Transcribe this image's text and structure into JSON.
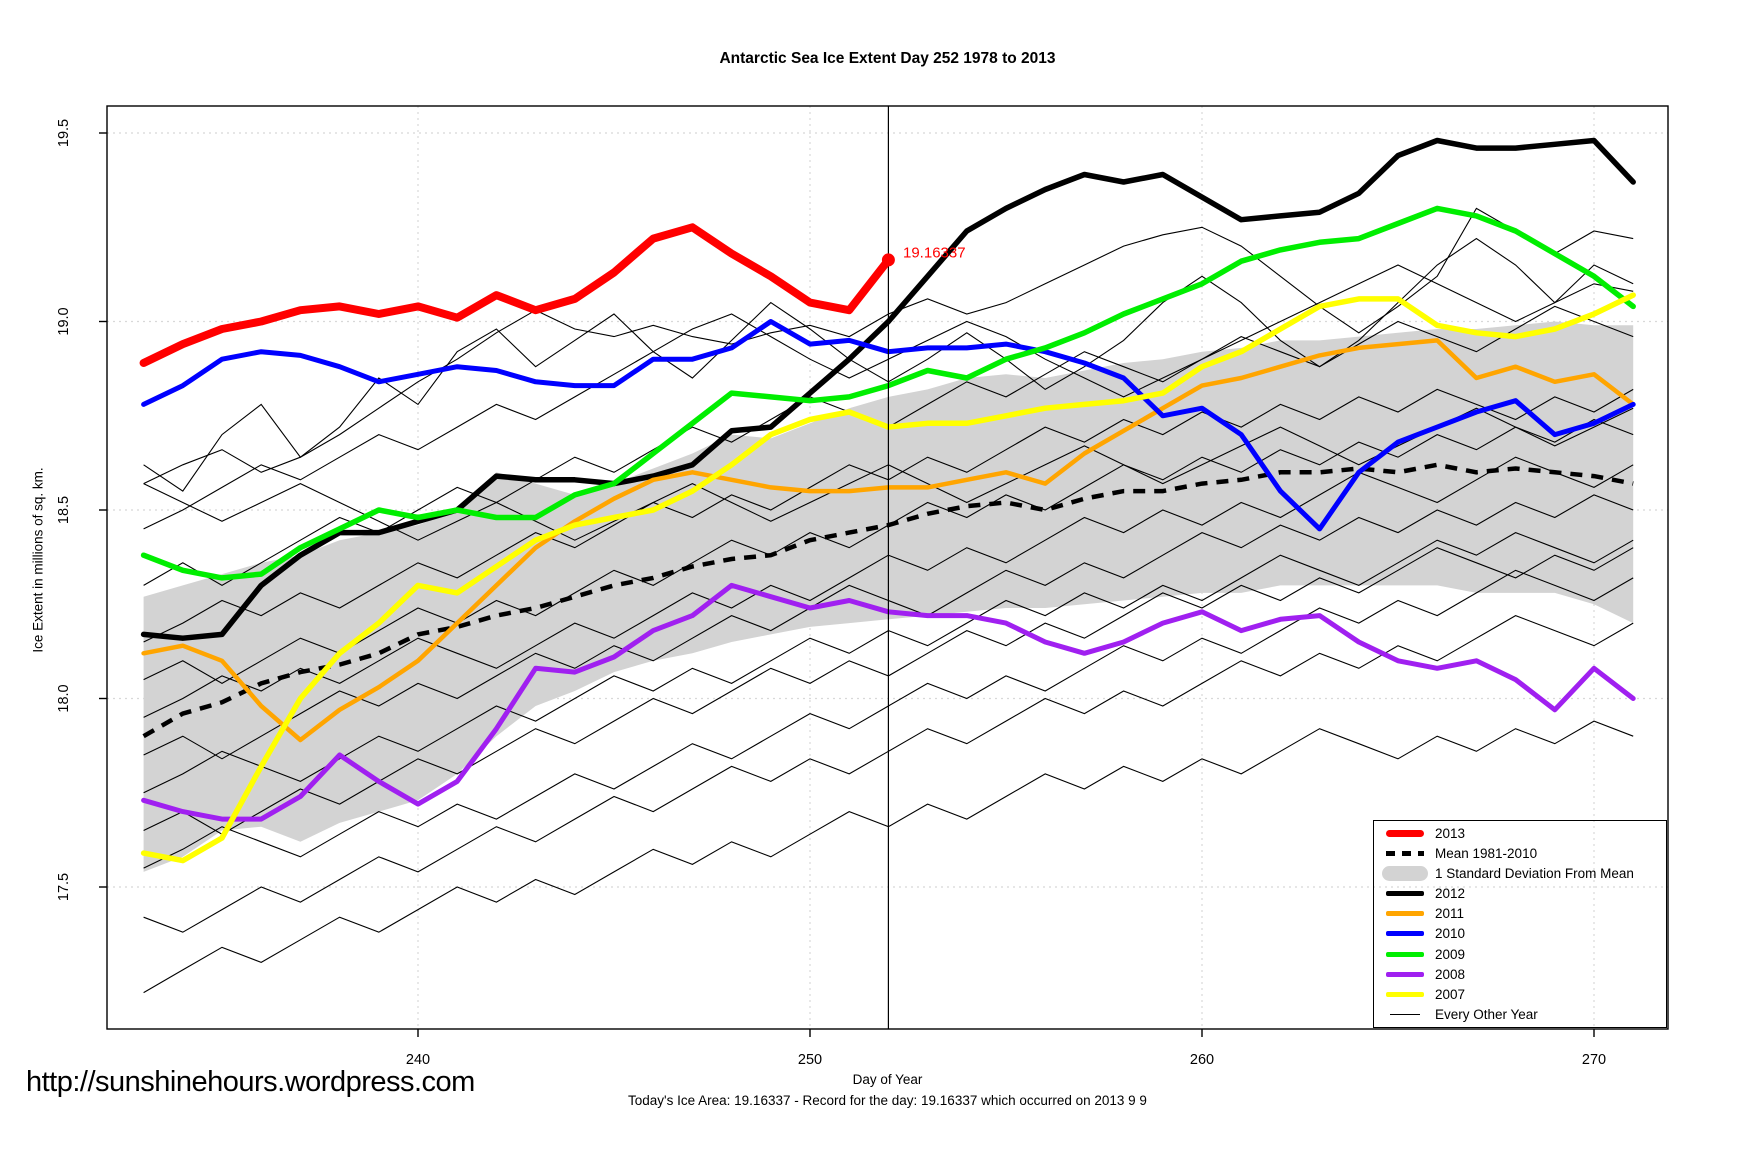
{
  "footer": {
    "url": "http://sunshinehours.wordpress.com",
    "status": "Today's Ice Area: 19.16337  - Record for the day: 19.16337 which occurred on 2013 9 9"
  },
  "chart_data": {
    "type": "line",
    "title": "Antarctic Sea Ice Extent Day 252 1978 to 2013",
    "xlabel": "Day of Year",
    "ylabel": "Ice Extent in millions of sq. km.",
    "x_ticks": [
      240,
      250,
      260,
      270
    ],
    "y_ticks": [
      17.5,
      18.0,
      18.5,
      19.0,
      19.5
    ],
    "x_range": [
      232.1,
      271.9
    ],
    "y_range": [
      17.12,
      19.57
    ],
    "grid": "dashed-lightgray",
    "legend_position": "bottom-right",
    "day_start": 233,
    "vline_day": 252,
    "annotation": {
      "label": "19.16337",
      "day": 252,
      "value": 19.16337,
      "color": "#FF0000"
    },
    "band": {
      "name": "1 Standard Deviation From Mean",
      "color": "#D3D3D3",
      "upper": [
        18.27,
        18.3,
        18.33,
        18.36,
        18.38,
        18.42,
        18.44,
        18.46,
        18.5,
        18.6,
        18.57,
        18.54,
        18.57,
        18.61,
        18.65,
        18.7,
        18.69,
        18.73,
        18.77,
        18.8,
        18.82,
        18.85,
        18.86,
        18.85,
        18.87,
        18.89,
        18.9,
        18.92,
        18.93,
        18.95,
        18.95,
        18.96,
        18.97,
        18.98,
        18.98,
        18.99,
        19.0,
        18.99,
        18.99
      ],
      "lower": [
        17.54,
        17.58,
        17.65,
        17.66,
        17.62,
        17.67,
        17.7,
        17.73,
        17.8,
        17.9,
        17.98,
        18.02,
        18.07,
        18.1,
        18.12,
        18.15,
        18.17,
        18.19,
        18.2,
        18.21,
        18.22,
        18.23,
        18.24,
        18.24,
        18.25,
        18.26,
        18.27,
        18.28,
        18.28,
        18.3,
        18.3,
        18.3,
        18.3,
        18.3,
        18.28,
        18.28,
        18.28,
        18.25,
        18.2
      ]
    },
    "mean": {
      "name": "Mean 1981-2010",
      "color": "#000000",
      "width": 4.5,
      "values": [
        17.9,
        17.96,
        17.99,
        18.04,
        18.07,
        18.09,
        18.12,
        18.17,
        18.19,
        18.22,
        18.24,
        18.27,
        18.3,
        18.32,
        18.35,
        18.37,
        18.38,
        18.42,
        18.44,
        18.46,
        18.49,
        18.51,
        18.52,
        18.5,
        18.53,
        18.55,
        18.55,
        18.57,
        18.58,
        18.6,
        18.6,
        18.61,
        18.6,
        18.62,
        18.6,
        18.61,
        18.6,
        18.59,
        18.57
      ]
    },
    "series": [
      {
        "name": "2012",
        "color": "#000000",
        "width": 5.5,
        "values": [
          18.17,
          18.16,
          18.17,
          18.3,
          18.38,
          18.44,
          18.44,
          18.47,
          18.5,
          18.59,
          18.58,
          18.58,
          18.57,
          18.59,
          18.62,
          18.71,
          18.72,
          18.81,
          18.9,
          19.0,
          19.12,
          19.24,
          19.3,
          19.35,
          19.39,
          19.37,
          19.39,
          19.33,
          19.27,
          19.28,
          19.29,
          19.34,
          19.44,
          19.48,
          19.46,
          19.46,
          19.47,
          19.48,
          19.37
        ]
      },
      {
        "name": "2011",
        "color": "#FFA500",
        "width": 4.5,
        "values": [
          18.12,
          18.14,
          18.1,
          17.98,
          17.89,
          17.97,
          18.03,
          18.1,
          18.2,
          18.3,
          18.4,
          18.47,
          18.53,
          18.58,
          18.6,
          18.58,
          18.56,
          18.55,
          18.55,
          18.56,
          18.56,
          18.58,
          18.6,
          18.57,
          18.65,
          18.71,
          18.77,
          18.83,
          18.85,
          18.88,
          18.91,
          18.93,
          18.94,
          18.95,
          18.85,
          18.88,
          18.84,
          18.86,
          18.78
        ]
      },
      {
        "name": "2010",
        "color": "#0000FF",
        "width": 5,
        "values": [
          18.78,
          18.83,
          18.9,
          18.92,
          18.91,
          18.88,
          18.84,
          18.86,
          18.88,
          18.87,
          18.84,
          18.83,
          18.83,
          18.9,
          18.9,
          18.93,
          19.0,
          18.94,
          18.95,
          18.92,
          18.93,
          18.93,
          18.94,
          18.92,
          18.89,
          18.85,
          18.75,
          18.77,
          18.7,
          18.55,
          18.45,
          18.6,
          18.68,
          18.72,
          18.76,
          18.79,
          18.7,
          18.73,
          18.78
        ]
      },
      {
        "name": "2009",
        "color": "#00EE00",
        "width": 5.5,
        "values": [
          18.38,
          18.34,
          18.32,
          18.33,
          18.4,
          18.45,
          18.5,
          18.48,
          18.5,
          18.48,
          18.48,
          18.54,
          18.57,
          18.65,
          18.73,
          18.81,
          18.8,
          18.79,
          18.8,
          18.83,
          18.87,
          18.85,
          18.9,
          18.93,
          18.97,
          19.02,
          19.06,
          19.1,
          19.16,
          19.19,
          19.21,
          19.22,
          19.26,
          19.3,
          19.28,
          19.24,
          19.18,
          19.12,
          19.04
        ]
      },
      {
        "name": "2008",
        "color": "#A020F0",
        "width": 5,
        "values": [
          17.73,
          17.7,
          17.68,
          17.68,
          17.74,
          17.85,
          17.78,
          17.72,
          17.78,
          17.92,
          18.08,
          18.07,
          18.11,
          18.18,
          18.22,
          18.3,
          18.27,
          18.24,
          18.26,
          18.23,
          18.22,
          18.22,
          18.2,
          18.15,
          18.12,
          18.15,
          18.2,
          18.23,
          18.18,
          18.21,
          18.22,
          18.15,
          18.1,
          18.08,
          18.1,
          18.05,
          17.97,
          18.08,
          18.0
        ]
      },
      {
        "name": "2007",
        "color": "#FFFF00",
        "width": 5.5,
        "values": [
          17.59,
          17.57,
          17.63,
          17.82,
          18.0,
          18.12,
          18.2,
          18.3,
          18.28,
          18.35,
          18.42,
          18.46,
          18.48,
          18.5,
          18.55,
          18.62,
          18.7,
          18.74,
          18.76,
          18.72,
          18.73,
          18.73,
          18.75,
          18.77,
          18.78,
          18.79,
          18.81,
          18.88,
          18.92,
          18.98,
          19.04,
          19.06,
          19.06,
          18.99,
          18.97,
          18.96,
          18.98,
          19.02,
          19.07
        ]
      }
    ],
    "record_series": {
      "name": "2013",
      "color": "#FF0000",
      "width": 8,
      "values": [
        18.89,
        18.94,
        18.98,
        19.0,
        19.03,
        19.04,
        19.02,
        19.04,
        19.01,
        19.07,
        19.03,
        19.06,
        19.13,
        19.22,
        19.25,
        19.18,
        19.12,
        19.05,
        19.03,
        19.163,
        null,
        null,
        null,
        null,
        null,
        null,
        null,
        null,
        null,
        null,
        null,
        null,
        null,
        null,
        null,
        null,
        null,
        null,
        null
      ]
    },
    "thin_series_name": "Every Other Year",
    "thin_series": [
      [
        18.57,
        18.62,
        18.66,
        18.6,
        18.64,
        18.7,
        18.77,
        18.84,
        18.9,
        18.97,
        19.03,
        18.98,
        18.96,
        18.99,
        18.96,
        18.94,
        18.97,
        18.99,
        18.96,
        19.02,
        19.06,
        19.02,
        19.05,
        19.1,
        19.15,
        19.2,
        19.23,
        19.25,
        19.2,
        19.12,
        19.04,
        18.97,
        19.04,
        19.12,
        19.3,
        19.24,
        19.18,
        19.24,
        19.22
      ],
      [
        18.45,
        18.5,
        18.56,
        18.62,
        18.58,
        18.64,
        18.7,
        18.66,
        18.72,
        18.78,
        18.74,
        18.8,
        18.86,
        18.92,
        18.98,
        19.02,
        18.96,
        18.9,
        18.85,
        18.9,
        18.95,
        19.0,
        18.96,
        18.9,
        18.85,
        18.8,
        18.85,
        18.9,
        18.95,
        19.0,
        19.05,
        19.1,
        19.15,
        19.1,
        19.05,
        19.0,
        19.05,
        19.1,
        19.08
      ],
      [
        18.3,
        18.36,
        18.3,
        18.36,
        18.42,
        18.48,
        18.44,
        18.5,
        18.56,
        18.52,
        18.58,
        18.64,
        18.6,
        18.66,
        18.72,
        18.68,
        18.74,
        18.8,
        18.76,
        18.72,
        18.78,
        18.84,
        18.8,
        18.86,
        18.92,
        18.88,
        18.84,
        18.9,
        18.96,
        18.92,
        18.88,
        18.94,
        19.0,
        18.96,
        18.92,
        18.98,
        19.04,
        19.0,
        18.96
      ],
      [
        18.15,
        18.2,
        18.26,
        18.22,
        18.28,
        18.24,
        18.3,
        18.36,
        18.32,
        18.38,
        18.44,
        18.4,
        18.46,
        18.52,
        18.48,
        18.54,
        18.5,
        18.56,
        18.62,
        18.58,
        18.64,
        18.6,
        18.66,
        18.72,
        18.68,
        18.74,
        18.7,
        18.76,
        18.72,
        18.78,
        18.74,
        18.8,
        18.76,
        18.82,
        18.78,
        18.74,
        18.8,
        18.76,
        18.82
      ],
      [
        18.05,
        18.1,
        18.04,
        18.1,
        18.16,
        18.12,
        18.18,
        18.24,
        18.2,
        18.26,
        18.22,
        18.28,
        18.34,
        18.3,
        18.36,
        18.42,
        18.38,
        18.44,
        18.4,
        18.46,
        18.52,
        18.48,
        18.54,
        18.5,
        18.56,
        18.62,
        18.58,
        18.64,
        18.6,
        18.66,
        18.62,
        18.68,
        18.64,
        18.7,
        18.66,
        18.72,
        18.68,
        18.74,
        18.7
      ],
      [
        17.95,
        18.0,
        18.06,
        18.02,
        18.08,
        18.04,
        18.1,
        18.16,
        18.12,
        18.08,
        18.14,
        18.2,
        18.16,
        18.22,
        18.28,
        18.24,
        18.3,
        18.26,
        18.32,
        18.38,
        18.34,
        18.4,
        18.36,
        18.42,
        18.48,
        18.44,
        18.5,
        18.46,
        18.52,
        18.48,
        18.54,
        18.6,
        18.56,
        18.52,
        18.58,
        18.64,
        18.6,
        18.56,
        18.62
      ],
      [
        17.85,
        17.9,
        17.84,
        17.9,
        17.96,
        18.02,
        17.98,
        18.04,
        18.0,
        18.06,
        18.12,
        18.08,
        18.14,
        18.1,
        18.16,
        18.22,
        18.18,
        18.24,
        18.3,
        18.26,
        18.22,
        18.28,
        18.34,
        18.3,
        18.36,
        18.32,
        18.38,
        18.44,
        18.4,
        18.46,
        18.42,
        18.48,
        18.44,
        18.5,
        18.46,
        18.52,
        18.48,
        18.54,
        18.5
      ],
      [
        17.75,
        17.8,
        17.86,
        17.82,
        17.78,
        17.84,
        17.9,
        17.86,
        17.92,
        17.98,
        17.94,
        18.0,
        18.06,
        18.02,
        18.08,
        18.04,
        18.1,
        18.16,
        18.12,
        18.18,
        18.14,
        18.2,
        18.26,
        18.22,
        18.28,
        18.24,
        18.3,
        18.26,
        18.32,
        18.38,
        18.34,
        18.3,
        18.36,
        18.42,
        18.38,
        18.44,
        18.4,
        18.36,
        18.42
      ],
      [
        17.65,
        17.7,
        17.64,
        17.7,
        17.76,
        17.72,
        17.78,
        17.84,
        17.8,
        17.86,
        17.92,
        17.88,
        17.94,
        18.0,
        17.96,
        18.02,
        18.08,
        18.04,
        18.1,
        18.06,
        18.12,
        18.18,
        18.14,
        18.2,
        18.16,
        18.22,
        18.28,
        18.24,
        18.3,
        18.26,
        18.32,
        18.28,
        18.34,
        18.4,
        18.36,
        18.32,
        18.38,
        18.34,
        18.4
      ],
      [
        17.55,
        17.6,
        17.66,
        17.62,
        17.58,
        17.64,
        17.7,
        17.66,
        17.72,
        17.68,
        17.74,
        17.8,
        17.76,
        17.82,
        17.88,
        17.84,
        17.9,
        17.96,
        17.92,
        17.98,
        18.04,
        18.0,
        18.06,
        18.02,
        18.08,
        18.14,
        18.1,
        18.16,
        18.12,
        18.18,
        18.24,
        18.2,
        18.26,
        18.22,
        18.28,
        18.34,
        18.3,
        18.26,
        18.32
      ],
      [
        17.42,
        17.38,
        17.44,
        17.5,
        17.46,
        17.52,
        17.58,
        17.54,
        17.6,
        17.66,
        17.62,
        17.68,
        17.74,
        17.7,
        17.76,
        17.82,
        17.78,
        17.84,
        17.8,
        17.86,
        17.92,
        17.88,
        17.94,
        18.0,
        17.96,
        18.02,
        17.98,
        18.04,
        18.1,
        18.06,
        18.12,
        18.08,
        18.14,
        18.1,
        18.16,
        18.22,
        18.18,
        18.14,
        18.2
      ],
      [
        17.22,
        17.28,
        17.34,
        17.3,
        17.36,
        17.42,
        17.38,
        17.44,
        17.5,
        17.46,
        17.52,
        17.48,
        17.54,
        17.6,
        17.56,
        17.62,
        17.58,
        17.64,
        17.7,
        17.66,
        17.72,
        17.68,
        17.74,
        17.8,
        17.76,
        17.82,
        17.78,
        17.84,
        17.8,
        17.86,
        17.92,
        17.88,
        17.84,
        17.9,
        17.86,
        17.92,
        17.88,
        17.94,
        17.9
      ],
      [
        18.57,
        18.52,
        18.47,
        18.52,
        18.57,
        18.52,
        18.47,
        18.42,
        18.47,
        18.52,
        18.47,
        18.42,
        18.47,
        18.52,
        18.57,
        18.52,
        18.47,
        18.52,
        18.57,
        18.62,
        18.57,
        18.52,
        18.57,
        18.62,
        18.67,
        18.62,
        18.57,
        18.62,
        18.67,
        18.72,
        18.67,
        18.62,
        18.67,
        18.72,
        18.77,
        18.72,
        18.67,
        18.72,
        18.77
      ],
      [
        18.62,
        18.55,
        18.7,
        18.78,
        18.64,
        18.72,
        18.85,
        18.78,
        18.92,
        18.98,
        18.88,
        18.95,
        19.02,
        18.92,
        18.85,
        18.95,
        19.05,
        18.98,
        18.9,
        18.84,
        18.9,
        18.97,
        18.9,
        18.82,
        18.88,
        18.95,
        19.05,
        19.12,
        19.05,
        18.95,
        18.88,
        18.95,
        19.05,
        19.15,
        19.22,
        19.15,
        19.05,
        19.15,
        19.1
      ]
    ],
    "legend": [
      {
        "label": "2013",
        "swatch": "thick",
        "color": "#FF0000"
      },
      {
        "label": "Mean 1981-2010",
        "swatch": "dashed",
        "color": "#000000"
      },
      {
        "label": "1 Standard Deviation From Mean",
        "swatch": "band",
        "color": "#D3D3D3"
      },
      {
        "label": "2012",
        "swatch": "medium",
        "color": "#000000"
      },
      {
        "label": "2011",
        "swatch": "medium",
        "color": "#FFA500"
      },
      {
        "label": "2010",
        "swatch": "medium",
        "color": "#0000FF"
      },
      {
        "label": "2009",
        "swatch": "medium",
        "color": "#00EE00"
      },
      {
        "label": "2008",
        "swatch": "medium",
        "color": "#A020F0"
      },
      {
        "label": "2007",
        "swatch": "medium",
        "color": "#FFFF00"
      },
      {
        "label": "Every Other Year",
        "swatch": "thin",
        "color": "#000000"
      }
    ]
  }
}
